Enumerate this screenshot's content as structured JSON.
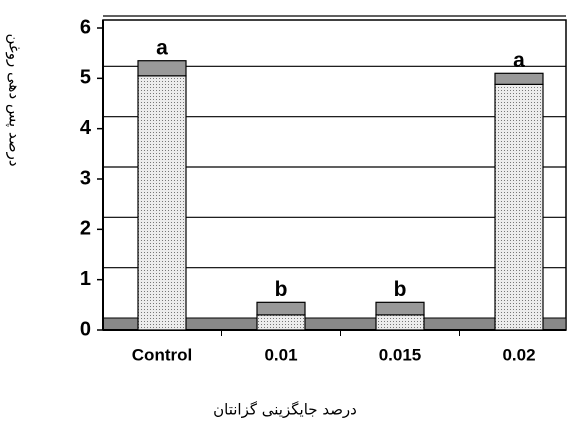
{
  "chart_data": {
    "type": "stacked_bar",
    "y_label": "درصد پس دهی روغن",
    "x_label": "درصد جایگزینی گزانتان",
    "categories": [
      "Control",
      "0.01",
      "0.015",
      "0.02"
    ],
    "series": [
      {
        "color": "#d4d4d4",
        "values": [
          5.05,
          0.3,
          0.3,
          4.88
        ]
      },
      {
        "color": "#999999",
        "values": [
          0.3,
          0.25,
          0.25,
          0.22
        ]
      }
    ],
    "annotations": [
      "a",
      "b",
      "b",
      "a"
    ],
    "ylim": [
      0,
      6
    ],
    "yticks": [
      0,
      1,
      2,
      3,
      4,
      5,
      6
    ],
    "grid": true,
    "floor_color": "#888888"
  }
}
